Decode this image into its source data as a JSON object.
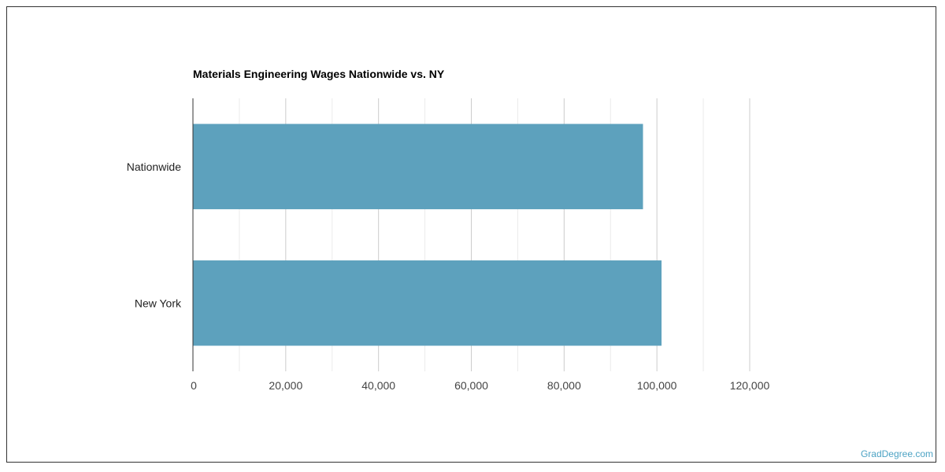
{
  "chart_data": {
    "type": "bar",
    "orientation": "horizontal",
    "title": "Materials Engineering Wages Nationwide vs. NY",
    "categories": [
      "Nationwide",
      "New York"
    ],
    "values": [
      97000,
      101000
    ],
    "xlim": [
      0,
      120000
    ],
    "xticks": [
      0,
      20000,
      40000,
      60000,
      80000,
      100000,
      120000
    ],
    "xtick_labels": [
      "0",
      "20,000",
      "40,000",
      "60,000",
      "80,000",
      "100,000",
      "120,000"
    ],
    "grid": true,
    "bar_color": "#5da1bd"
  },
  "watermark": "GradDegree.com"
}
